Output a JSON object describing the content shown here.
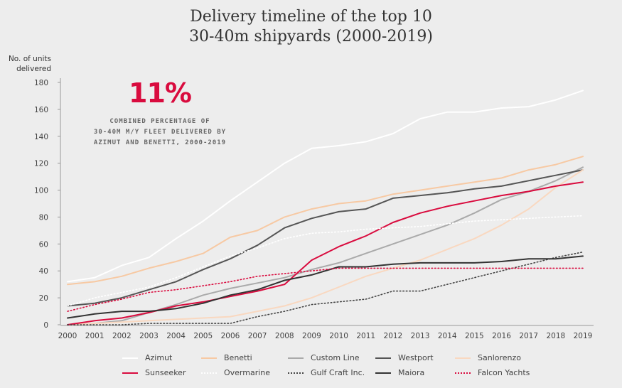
{
  "header": {
    "title_line1": "Delivery timeline of the top 10",
    "title_line2": "30-40m shipyards (2000-2019)"
  },
  "ylabel_line1": "No. of units",
  "ylabel_line2": "delivered",
  "stat": {
    "value": "11%",
    "line1": "COMBINED PERCENTAGE OF",
    "line2": "30-40M M/Y FLEET DELIVERED BY",
    "line3": "AZIMUT AND BENETTI, 2000-2019"
  },
  "chart_data": {
    "type": "line",
    "title": "Delivery timeline of the top 10 30-40m shipyards (2000-2019)",
    "ylabel": "No. of units delivered",
    "xlabel": "",
    "ylim": [
      0,
      180
    ],
    "yticks": [
      0,
      20,
      40,
      60,
      80,
      100,
      120,
      140,
      160,
      180
    ],
    "grid": false,
    "legend_position": "bottom",
    "x": [
      "2000",
      "2001",
      "2002",
      "2003",
      "2004",
      "2005",
      "2006",
      "2007",
      "2008",
      "2009",
      "2010",
      "2011",
      "2012",
      "2013",
      "2014",
      "2015",
      "2016",
      "2017",
      "2018",
      "2019"
    ],
    "series": [
      {
        "name": "Azimut",
        "color": "#ffffff",
        "style": "solid",
        "values": [
          32,
          35,
          44,
          50,
          64,
          77,
          92,
          106,
          120,
          131,
          133,
          136,
          142,
          153,
          158,
          158,
          161,
          162,
          167,
          174
        ]
      },
      {
        "name": "Benetti",
        "color": "#f7c9a3",
        "style": "solid",
        "values": [
          30,
          32,
          36,
          42,
          47,
          53,
          65,
          70,
          80,
          86,
          90,
          92,
          97,
          100,
          103,
          106,
          109,
          115,
          119,
          125
        ]
      },
      {
        "name": "Custom Line",
        "color": "#aaaaaa",
        "style": "solid",
        "values": [
          0,
          1,
          3,
          9,
          15,
          22,
          27,
          31,
          35,
          41,
          46,
          53,
          60,
          67,
          74,
          83,
          93,
          99,
          107,
          117
        ]
      },
      {
        "name": "Westport",
        "color": "#555555",
        "style": "solid",
        "values": [
          14,
          16,
          20,
          26,
          32,
          41,
          49,
          59,
          72,
          79,
          84,
          86,
          94,
          96,
          98,
          101,
          103,
          107,
          111,
          115
        ]
      },
      {
        "name": "Sanlorenzo",
        "color": "#f9d8c0",
        "style": "solid",
        "values": [
          0,
          1,
          2,
          3,
          4,
          5,
          6,
          10,
          14,
          20,
          28,
          36,
          42,
          48,
          56,
          64,
          74,
          86,
          102,
          115
        ]
      },
      {
        "name": "Sunseeker",
        "color": "#d90b3e",
        "style": "solid",
        "values": [
          0,
          3,
          5,
          9,
          14,
          17,
          21,
          25,
          30,
          48,
          58,
          66,
          76,
          83,
          88,
          92,
          96,
          99,
          103,
          106
        ]
      },
      {
        "name": "Overmarine",
        "color": "#ffffff",
        "style": "dotted",
        "values": [
          14,
          20,
          24,
          28,
          35,
          43,
          51,
          57,
          64,
          68,
          69,
          71,
          72,
          73,
          75,
          77,
          78,
          79,
          80,
          81
        ]
      },
      {
        "name": "Gulf Craft Inc.",
        "color": "#444444",
        "style": "dotted",
        "values": [
          0,
          0,
          0,
          1,
          1,
          1,
          1,
          6,
          10,
          15,
          17,
          19,
          25,
          25,
          30,
          35,
          40,
          45,
          50,
          54
        ]
      },
      {
        "name": "Maiora",
        "color": "#333333",
        "style": "solid",
        "values": [
          5,
          8,
          10,
          10,
          12,
          16,
          22,
          26,
          33,
          37,
          43,
          43,
          45,
          46,
          46,
          46,
          47,
          49,
          49,
          51
        ]
      },
      {
        "name": "Falcon Yachts",
        "color": "#d90b3e",
        "style": "dotted",
        "values": [
          10,
          15,
          19,
          24,
          26,
          29,
          32,
          36,
          38,
          40,
          42,
          42,
          42,
          42,
          42,
          42,
          42,
          42,
          42,
          42
        ]
      }
    ]
  }
}
